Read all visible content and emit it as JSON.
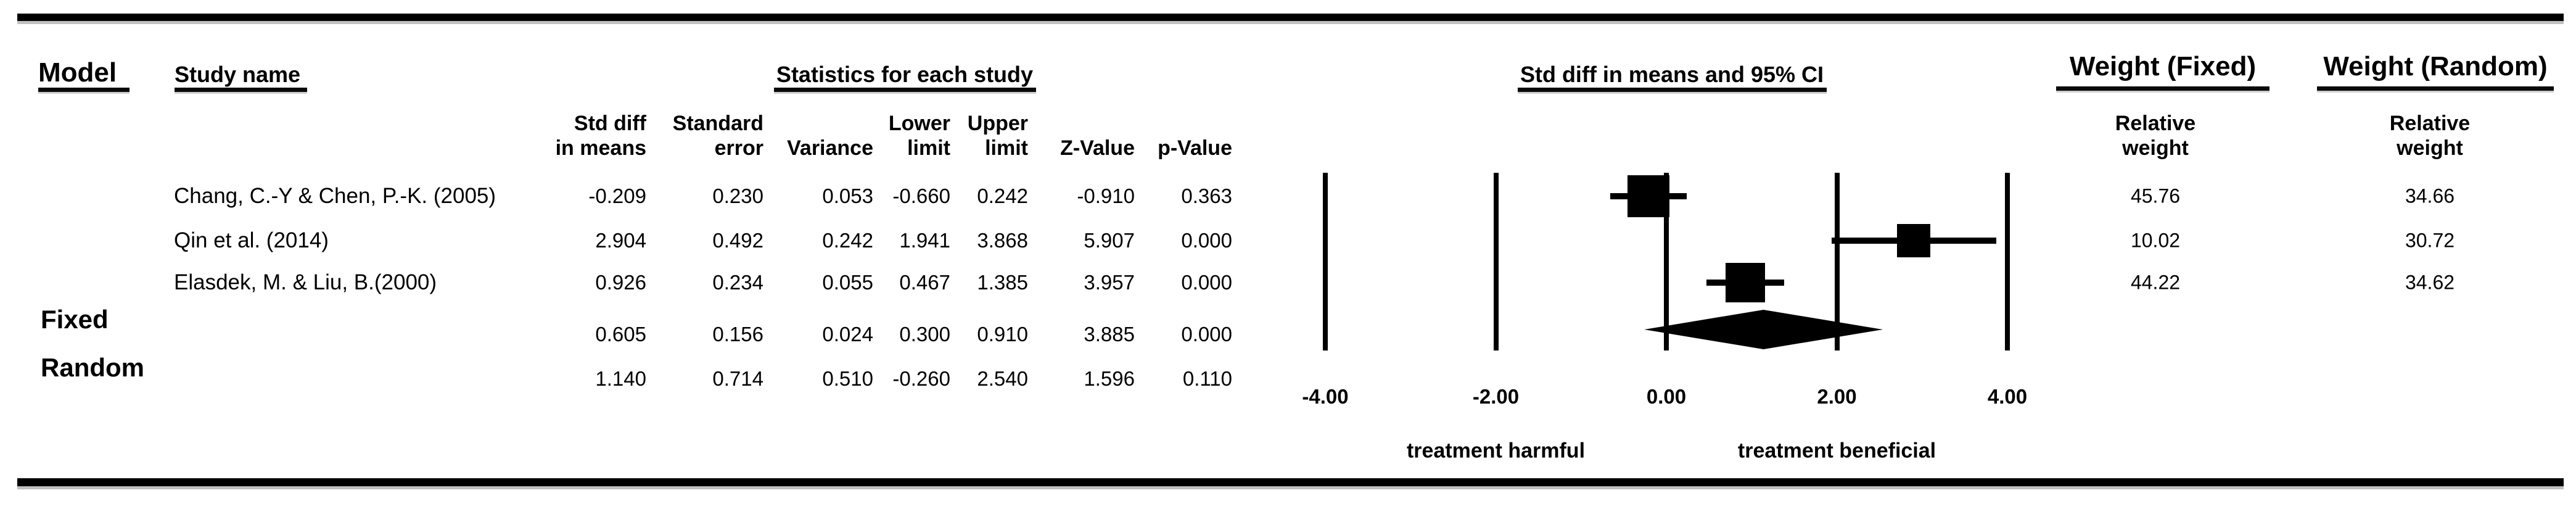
{
  "headers": {
    "model": "Model",
    "study_name": "Study name",
    "statistics": "Statistics for each study",
    "plot": "Std diff in means and 95% CI",
    "weight_fixed": "Weight (Fixed)",
    "weight_random": "Weight (Random)"
  },
  "column_headers": {
    "std_diff_line1": "Std diff",
    "std_diff_line2": "in means",
    "standard_error_line1": "Standard",
    "standard_error_line2": "error",
    "variance": "Variance",
    "lower_line1": "Lower",
    "lower_line2": "limit",
    "upper_line1": "Upper",
    "upper_line2": "limit",
    "z_value": "Z-Value",
    "p_value": "p-Value",
    "relative_fixed_line1": "Relative",
    "relative_fixed_line2": "weight",
    "relative_random_line1": "Relative",
    "relative_random_line2": "weight"
  },
  "table_rows": [
    {
      "model_label": "",
      "study": "Chang, C.-Y & Chen, P.-K. (2005)",
      "std_diff": "-0.209",
      "standard_error": "0.230",
      "variance": "0.053",
      "lower_limit": "-0.660",
      "upper_limit": "0.242",
      "z_value": "-0.910",
      "p_value": "0.363",
      "weight_fixed": "45.76",
      "weight_random": "34.66"
    },
    {
      "model_label": "",
      "study": "Qin et al. (2014)",
      "std_diff": "2.904",
      "standard_error": "0.492",
      "variance": "0.242",
      "lower_limit": "1.941",
      "upper_limit": "3.868",
      "z_value": "5.907",
      "p_value": "0.000",
      "weight_fixed": "10.02",
      "weight_random": "30.72"
    },
    {
      "model_label": "",
      "study": "Elasdek, M. & Liu, B.(2000)",
      "std_diff": "0.926",
      "standard_error": "0.234",
      "variance": "0.055",
      "lower_limit": "0.467",
      "upper_limit": "1.385",
      "z_value": "3.957",
      "p_value": "0.000",
      "weight_fixed": "44.22",
      "weight_random": "34.62"
    },
    {
      "model_label": "Fixed",
      "study": "",
      "std_diff": "0.605",
      "standard_error": "0.156",
      "variance": "0.024",
      "lower_limit": "0.300",
      "upper_limit": "0.910",
      "z_value": "3.885",
      "p_value": "0.000",
      "weight_fixed": "",
      "weight_random": ""
    },
    {
      "model_label": "Random",
      "study": "",
      "std_diff": "1.140",
      "standard_error": "0.714",
      "variance": "0.510",
      "lower_limit": "-0.260",
      "upper_limit": "2.540",
      "z_value": "1.596",
      "p_value": "0.110",
      "weight_fixed": "",
      "weight_random": ""
    }
  ],
  "chart_data": {
    "type": "forest",
    "title": "Std diff in means and 95% CI",
    "xlabel": "Std diff in means",
    "xlim": [
      -4,
      4
    ],
    "x_ticks": [
      -4,
      -2,
      0,
      2,
      4
    ],
    "x_tick_labels": [
      "-4.00",
      "-2.00",
      "0.00",
      "2.00",
      "4.00"
    ],
    "grid": true,
    "studies": [
      {
        "name": "Chang, C.-Y & Chen, P.-K. (2005)",
        "mean": -0.209,
        "lower": -0.66,
        "upper": 0.242,
        "weight_fixed": 45.76,
        "weight_random": 34.66
      },
      {
        "name": "Qin et al. (2014)",
        "mean": 2.904,
        "lower": 1.941,
        "upper": 3.868,
        "weight_fixed": 10.02,
        "weight_random": 30.72
      },
      {
        "name": "Elasdek, M. & Liu, B.(2000)",
        "mean": 0.926,
        "lower": 0.467,
        "upper": 1.385,
        "weight_fixed": 44.22,
        "weight_random": 34.62
      }
    ],
    "summary_rows": [
      {
        "name": "Fixed",
        "mean": 0.605,
        "lower": 0.3,
        "upper": 0.91
      },
      {
        "name": "Random",
        "mean": 1.14,
        "lower": -0.26,
        "upper": 2.54
      }
    ],
    "diamond": {
      "mean": 1.14,
      "lower": -0.26,
      "upper": 2.54
    },
    "x_axis_annotations": {
      "left": "treatment harmful",
      "right": "treatment beneficial"
    }
  },
  "colors": {
    "ink": "#000000",
    "background": "#ffffff"
  }
}
